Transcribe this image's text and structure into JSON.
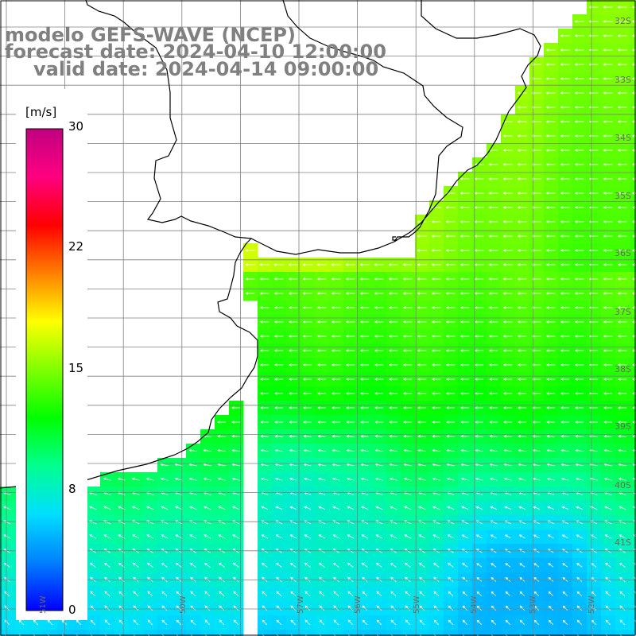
{
  "header": {
    "model": "modelo GEFS-WAVE (NCEP)",
    "forecast": "forecast date: 2024-04-10 12:00:00",
    "valid": "valid date: 2024-04-14 09:00:00"
  },
  "colorbar": {
    "units": "[m/s]",
    "ticks": [
      "30",
      "22",
      "15",
      "8",
      "0"
    ],
    "tick_values": [
      30,
      22,
      15,
      8,
      0
    ],
    "min": 0,
    "max": 30,
    "colors": [
      "#0000ff",
      "#0080ff",
      "#00dfff",
      "#00ff90",
      "#00ff00",
      "#80ff00",
      "#ffff00",
      "#ff8000",
      "#ff0000",
      "#ff0080",
      "#c00080"
    ]
  },
  "lat_labels": [
    "32S",
    "33S",
    "34S",
    "35S",
    "36S",
    "37S",
    "38S",
    "39S",
    "40S",
    "41S"
  ],
  "lon_labels": [
    "57W",
    "56W",
    "55W",
    "54W",
    "53W",
    "52W",
    "51W",
    "50W"
  ],
  "colors": {
    "grid": "#808080",
    "coast": "#000000",
    "arrows": "#ffffff"
  }
}
